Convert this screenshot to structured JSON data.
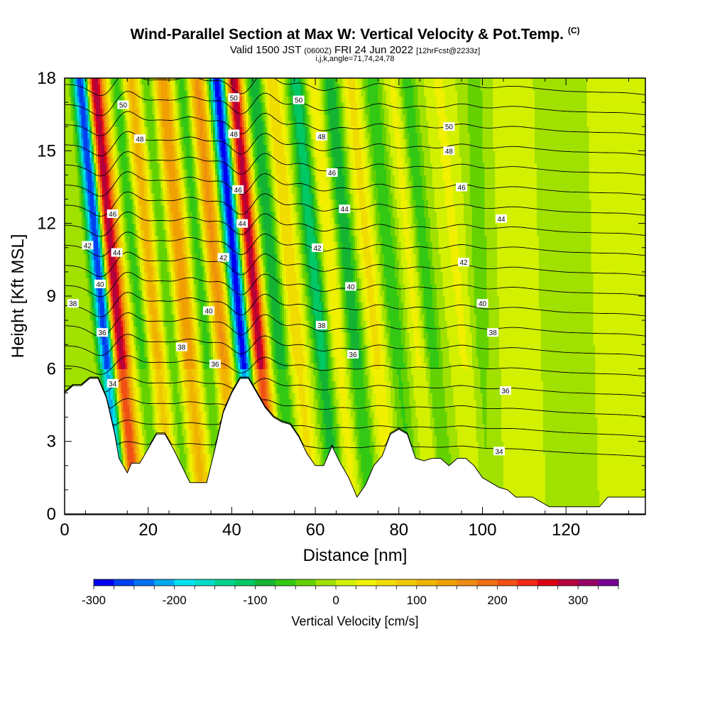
{
  "title": {
    "main": "Wind-Parallel Section at Max W: Vertical Velocity & Pot.Temp.",
    "main_mark": "(C)",
    "valid_a": "Valid 1500 JST",
    "valid_b": "(0600Z)",
    "valid_c": "FRI 24 Jun 2022",
    "valid_d": "[12hrFcst@2233z]",
    "indices": "i,j,k,angle=71,74,24,78"
  },
  "chart_data": {
    "type": "heatmap",
    "xlabel": "Distance [nm]",
    "ylabel": "Height [Kft MSL]",
    "xlim": [
      0,
      139
    ],
    "ylim": [
      0,
      18
    ],
    "x_ticks": [
      0,
      20,
      40,
      60,
      80,
      100,
      120
    ],
    "y_ticks": [
      0,
      3,
      6,
      9,
      12,
      15,
      18
    ],
    "x_tick_labels": [
      "0",
      "20",
      "40",
      "60",
      "80",
      "100",
      "120"
    ],
    "y_tick_labels": [
      "0",
      "3",
      "6",
      "9",
      "12",
      "15",
      "18"
    ],
    "colorbar": {
      "label": "Vertical Velocity [cm/s]",
      "min": -300,
      "max": 350,
      "step": 25,
      "ticks": [
        -300,
        -200,
        -100,
        0,
        100,
        200,
        300
      ],
      "tick_labels": [
        "-300",
        "-200",
        "-100",
        "0",
        "100",
        "200",
        "300"
      ],
      "colors": [
        "#0000f0",
        "#0040f0",
        "#0070f0",
        "#00a8f0",
        "#00e0f0",
        "#00dcc8",
        "#00d28c",
        "#00c864",
        "#14b432",
        "#32c814",
        "#64d200",
        "#a0e100",
        "#d2f000",
        "#f0f000",
        "#f0dc00",
        "#f0c800",
        "#f0b400",
        "#f0a000",
        "#f08c14",
        "#f06e14",
        "#f05014",
        "#f02814",
        "#dc0014",
        "#b4003c",
        "#960064",
        "#780096"
      ]
    },
    "velocity_features_nm_cms": [
      {
        "x": 10.5,
        "w": -300
      },
      {
        "x": 13.5,
        "w": 300
      },
      {
        "x": 16,
        "w": 60
      },
      {
        "x": 19,
        "w": -90
      },
      {
        "x": 22.5,
        "w": 130
      },
      {
        "x": 26,
        "w": -70
      },
      {
        "x": 30,
        "w": 150
      },
      {
        "x": 35,
        "w": -90
      },
      {
        "x": 38,
        "w": 170
      },
      {
        "x": 43,
        "w": -300
      },
      {
        "x": 47,
        "w": 300
      },
      {
        "x": 52,
        "w": -100
      },
      {
        "x": 56,
        "w": 80
      },
      {
        "x": 62,
        "w": -120
      },
      {
        "x": 66,
        "w": 60
      },
      {
        "x": 70,
        "w": -100
      },
      {
        "x": 75,
        "w": 60
      },
      {
        "x": 80,
        "w": -70
      },
      {
        "x": 86,
        "w": 60
      },
      {
        "x": 88,
        "w": -90
      },
      {
        "x": 96,
        "w": 30
      },
      {
        "x": 100,
        "w": -40
      },
      {
        "x": 108,
        "w": 20
      },
      {
        "x": 120,
        "w": -10
      },
      {
        "x": 134,
        "w": 15
      }
    ],
    "terrain_height_kft": {
      "x": [
        0,
        2,
        4,
        6,
        8,
        10,
        12,
        13,
        14,
        15,
        16,
        18,
        20,
        22,
        24,
        26,
        28,
        30,
        32,
        34,
        36,
        38,
        40,
        42,
        44,
        46,
        48,
        50,
        52,
        54,
        56,
        58,
        60,
        62,
        64,
        66,
        68,
        70,
        72,
        74,
        76,
        78,
        80,
        82,
        84,
        86,
        88,
        90,
        92,
        94,
        96,
        98,
        100,
        102,
        104,
        106,
        108,
        110,
        112,
        114,
        116,
        118,
        120,
        122,
        124,
        126,
        128,
        130,
        132,
        134,
        136,
        139
      ],
      "h": [
        5.0,
        5.3,
        5.3,
        5.6,
        5.6,
        4.8,
        3.3,
        2.3,
        2.0,
        1.7,
        2.1,
        2.1,
        2.7,
        3.3,
        3.3,
        2.7,
        2.0,
        1.3,
        1.3,
        1.3,
        2.7,
        4.2,
        5.0,
        5.6,
        5.6,
        5.0,
        4.4,
        4.0,
        3.8,
        3.7,
        3.2,
        2.5,
        2.0,
        2.0,
        2.8,
        2.1,
        1.5,
        0.7,
        1.2,
        2.0,
        2.4,
        3.3,
        3.5,
        3.3,
        2.3,
        2.2,
        2.3,
        2.3,
        2.0,
        2.3,
        2.3,
        2.0,
        1.5,
        1.3,
        1.1,
        1.0,
        0.7,
        0.7,
        0.7,
        0.5,
        0.3,
        0.3,
        0.3,
        0.3,
        0.3,
        0.3,
        0.3,
        0.7,
        0.7,
        0.7,
        0.7,
        0.7
      ]
    },
    "theta_levels_C": [
      34,
      35,
      36,
      37,
      38,
      39,
      40,
      41,
      42,
      43,
      44,
      45,
      46,
      47,
      48,
      49,
      50,
      51,
      52
    ],
    "theta_contour_labels": [
      {
        "text": "50",
        "x": 14,
        "y": 16.9
      },
      {
        "text": "48",
        "x": 18,
        "y": 15.5
      },
      {
        "text": "46",
        "x": 11.5,
        "y": 12.4
      },
      {
        "text": "44",
        "x": 12.5,
        "y": 10.8
      },
      {
        "text": "42",
        "x": 5.5,
        "y": 11.1
      },
      {
        "text": "40",
        "x": 8.5,
        "y": 9.5
      },
      {
        "text": "38",
        "x": 2,
        "y": 8.7
      },
      {
        "text": "36",
        "x": 9,
        "y": 7.5
      },
      {
        "text": "34",
        "x": 11.5,
        "y": 5.4
      },
      {
        "text": "50",
        "x": 40.5,
        "y": 17.2
      },
      {
        "text": "48",
        "x": 40.5,
        "y": 15.7
      },
      {
        "text": "46",
        "x": 41.5,
        "y": 13.4
      },
      {
        "text": "44",
        "x": 42.5,
        "y": 12.0
      },
      {
        "text": "42",
        "x": 38,
        "y": 10.6
      },
      {
        "text": "40",
        "x": 34.5,
        "y": 8.4
      },
      {
        "text": "38",
        "x": 28,
        "y": 6.9
      },
      {
        "text": "36",
        "x": 36,
        "y": 6.2
      },
      {
        "text": "50",
        "x": 56,
        "y": 17.1
      },
      {
        "text": "48",
        "x": 61.5,
        "y": 15.6
      },
      {
        "text": "46",
        "x": 64,
        "y": 14.1
      },
      {
        "text": "44",
        "x": 67,
        "y": 12.6
      },
      {
        "text": "42",
        "x": 60.5,
        "y": 11.0
      },
      {
        "text": "40",
        "x": 68.5,
        "y": 9.4
      },
      {
        "text": "38",
        "x": 61.5,
        "y": 7.8
      },
      {
        "text": "36",
        "x": 69,
        "y": 6.6
      },
      {
        "text": "50",
        "x": 92,
        "y": 16.0
      },
      {
        "text": "48",
        "x": 92,
        "y": 15.0
      },
      {
        "text": "46",
        "x": 95,
        "y": 13.5
      },
      {
        "text": "44",
        "x": 104.5,
        "y": 12.2
      },
      {
        "text": "42",
        "x": 95.5,
        "y": 10.4
      },
      {
        "text": "40",
        "x": 100,
        "y": 8.7
      },
      {
        "text": "38",
        "x": 102.5,
        "y": 7.5
      },
      {
        "text": "36",
        "x": 105.5,
        "y": 5.1
      },
      {
        "text": "34",
        "x": 104,
        "y": 2.6
      }
    ]
  }
}
